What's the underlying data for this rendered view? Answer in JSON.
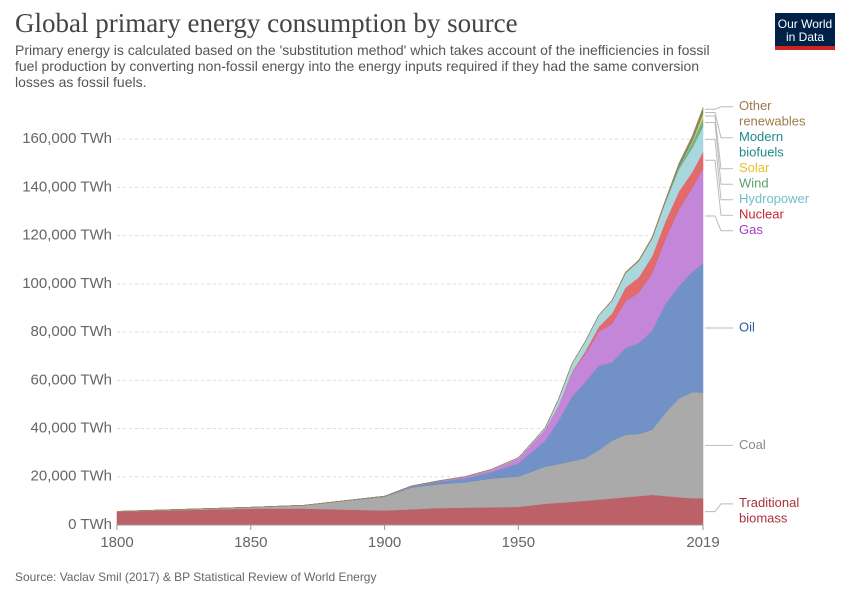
{
  "header": {
    "title": "Global primary energy consumption by source",
    "subtitle": "Primary energy is calculated based on the 'substitution method' which takes account of the inefficiencies in fossil fuel production by converting non-fossil energy into the energy inputs required if they had the same conversion losses as fossil fuels.",
    "logo": [
      "Our World",
      "in Data"
    ]
  },
  "footer": {
    "source": "Source: Vaclav Smil (2017) & BP Statistical Review of World Energy"
  },
  "chart_data": {
    "type": "stacked-area",
    "x": [
      1800,
      1850,
      1870,
      1900,
      1910,
      1920,
      1930,
      1940,
      1950,
      1960,
      1965,
      1970,
      1975,
      1980,
      1985,
      1990,
      1995,
      2000,
      2005,
      2010,
      2015,
      2019
    ],
    "xlim": [
      1800,
      2019
    ],
    "xticks": [
      1800,
      1850,
      1900,
      1950,
      2019
    ],
    "ylim": [
      0,
      175000
    ],
    "yticks": [
      {
        "value": 0,
        "label": "0 TWh"
      },
      {
        "value": 20000,
        "label": "20,000 TWh"
      },
      {
        "value": 40000,
        "label": "40,000 TWh"
      },
      {
        "value": 60000,
        "label": "60,000 TWh"
      },
      {
        "value": 80000,
        "label": "80,000 TWh"
      },
      {
        "value": 100000,
        "label": "100,000 TWh"
      },
      {
        "value": 120000,
        "label": "120,000 TWh"
      },
      {
        "value": 140000,
        "label": "140,000 TWh"
      },
      {
        "value": 160000,
        "label": "160,000 TWh"
      }
    ],
    "grid": true,
    "series": [
      {
        "name": "Traditional biomass",
        "color": "#b8585f",
        "label_color": "#a8323c",
        "values": [
          5556,
          6800,
          6800,
          6000,
          6500,
          7000,
          7200,
          7300,
          7500,
          8800,
          9200,
          9600,
          10000,
          10500,
          11000,
          11500,
          12000,
          12500,
          12000,
          11500,
          11100,
          11111
        ]
      },
      {
        "name": "Coal",
        "color": "#a5a5a5",
        "label_color": "#888888",
        "values": [
          97,
          570,
          1400,
          5700,
          9000,
          9900,
          10500,
          12000,
          12600,
          15400,
          16100,
          16900,
          17700,
          20500,
          24000,
          25900,
          25800,
          27000,
          34600,
          41000,
          44000,
          43800
        ]
      },
      {
        "name": "Oil",
        "color": "#6a8cc4",
        "label_color": "#2c5a9e",
        "values": [
          0,
          0,
          0,
          180,
          500,
          1100,
          1600,
          2700,
          5400,
          10800,
          17900,
          26700,
          31600,
          35000,
          32500,
          36000,
          37600,
          41100,
          45100,
          46600,
          49800,
          53600
        ]
      },
      {
        "name": "Gas",
        "color": "#c17fd6",
        "label_color": "#a03ec0",
        "values": [
          0,
          0,
          0,
          64,
          150,
          230,
          600,
          900,
          2100,
          4600,
          6300,
          10000,
          11600,
          14200,
          16000,
          19400,
          21000,
          23900,
          27000,
          31900,
          35000,
          39300
        ]
      },
      {
        "name": "Nuclear",
        "color": "#e06262",
        "label_color": "#c2272d",
        "values": [
          0,
          0,
          0,
          0,
          0,
          0,
          0,
          0,
          0,
          2,
          65,
          230,
          1100,
          1900,
          4200,
          5600,
          6300,
          7000,
          7300,
          7300,
          6500,
          6900
        ]
      },
      {
        "name": "Hydropower",
        "color": "#a3d6dc",
        "label_color": "#6fbfcc",
        "values": [
          0,
          0,
          0,
          20,
          40,
          70,
          130,
          200,
          333,
          690,
          2600,
          3400,
          4200,
          4800,
          5300,
          6000,
          6700,
          7300,
          7900,
          9300,
          10000,
          10450
        ]
      },
      {
        "name": "Wind",
        "color": "#6aae7f",
        "label_color": "#5aa06b",
        "values": [
          0,
          0,
          0,
          0,
          0,
          0,
          0,
          0,
          0,
          0,
          0,
          0,
          0,
          0,
          0,
          10,
          20,
          85,
          290,
          900,
          2200,
          3540
        ]
      },
      {
        "name": "Solar",
        "color": "#f0cf52",
        "label_color": "#e6c229",
        "values": [
          0,
          0,
          0,
          0,
          0,
          0,
          0,
          0,
          0,
          0,
          0,
          0,
          0,
          0,
          0,
          1,
          1,
          3,
          10,
          90,
          650,
          1790
        ]
      },
      {
        "name": "Modern biofuels",
        "color": "#3a9596",
        "label_color": "#1f8a8f",
        "values": [
          0,
          0,
          0,
          0,
          0,
          0,
          0,
          0,
          0,
          0,
          0,
          0,
          0,
          0,
          0,
          100,
          100,
          130,
          260,
          730,
          850,
          1130
        ]
      },
      {
        "name": "Other renewables",
        "color": "#a77c50",
        "label_color": "#a0794a",
        "values": [
          0,
          0,
          0,
          0,
          0,
          0,
          0,
          0,
          0,
          0,
          0,
          0,
          0,
          150,
          300,
          350,
          400,
          450,
          550,
          700,
          1300,
          1600
        ]
      }
    ]
  }
}
